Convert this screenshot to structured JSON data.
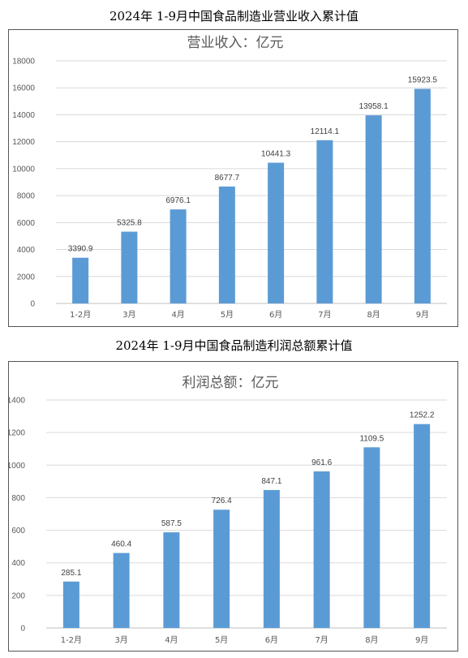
{
  "charts_heading": [
    "2024年 1-9月中国食品制造业营业收入累计值",
    "2024年 1-9月中国食品制造利润总额累计值"
  ],
  "chart_data": [
    {
      "type": "bar",
      "title": "营业收入：亿元",
      "categories": [
        "1-2月",
        "3月",
        "4月",
        "5月",
        "6月",
        "7月",
        "8月",
        "9月"
      ],
      "values": [
        3390.9,
        5325.8,
        6976.1,
        8677.7,
        10441.3,
        12114.1,
        13958.1,
        15923.5
      ],
      "value_labels": [
        "3390.9",
        "5325.8",
        "6976.1",
        "8677.7",
        "10441.3",
        "12114.1",
        "13958.1",
        "15923.5"
      ],
      "ylim": [
        0,
        18000
      ],
      "yticks": [
        0,
        2000,
        4000,
        6000,
        8000,
        10000,
        12000,
        14000,
        16000,
        18000
      ],
      "grid": true,
      "bar_color": "#5b9bd5"
    },
    {
      "type": "bar",
      "title": "利润总额：亿元",
      "categories": [
        "1-2月",
        "3月",
        "4月",
        "5月",
        "6月",
        "7月",
        "8月",
        "9月"
      ],
      "values": [
        285.1,
        460.4,
        587.5,
        726.4,
        847.1,
        961.6,
        1109.5,
        1252.2
      ],
      "value_labels": [
        "285.1",
        "460.4",
        "587.5",
        "726.4",
        "847.1",
        "961.6",
        "1109.5",
        "1252.2"
      ],
      "ylim": [
        0,
        1400
      ],
      "yticks": [
        0,
        200,
        400,
        600,
        800,
        1000,
        1200,
        1400
      ],
      "grid": true,
      "bar_color": "#5b9bd5"
    }
  ]
}
